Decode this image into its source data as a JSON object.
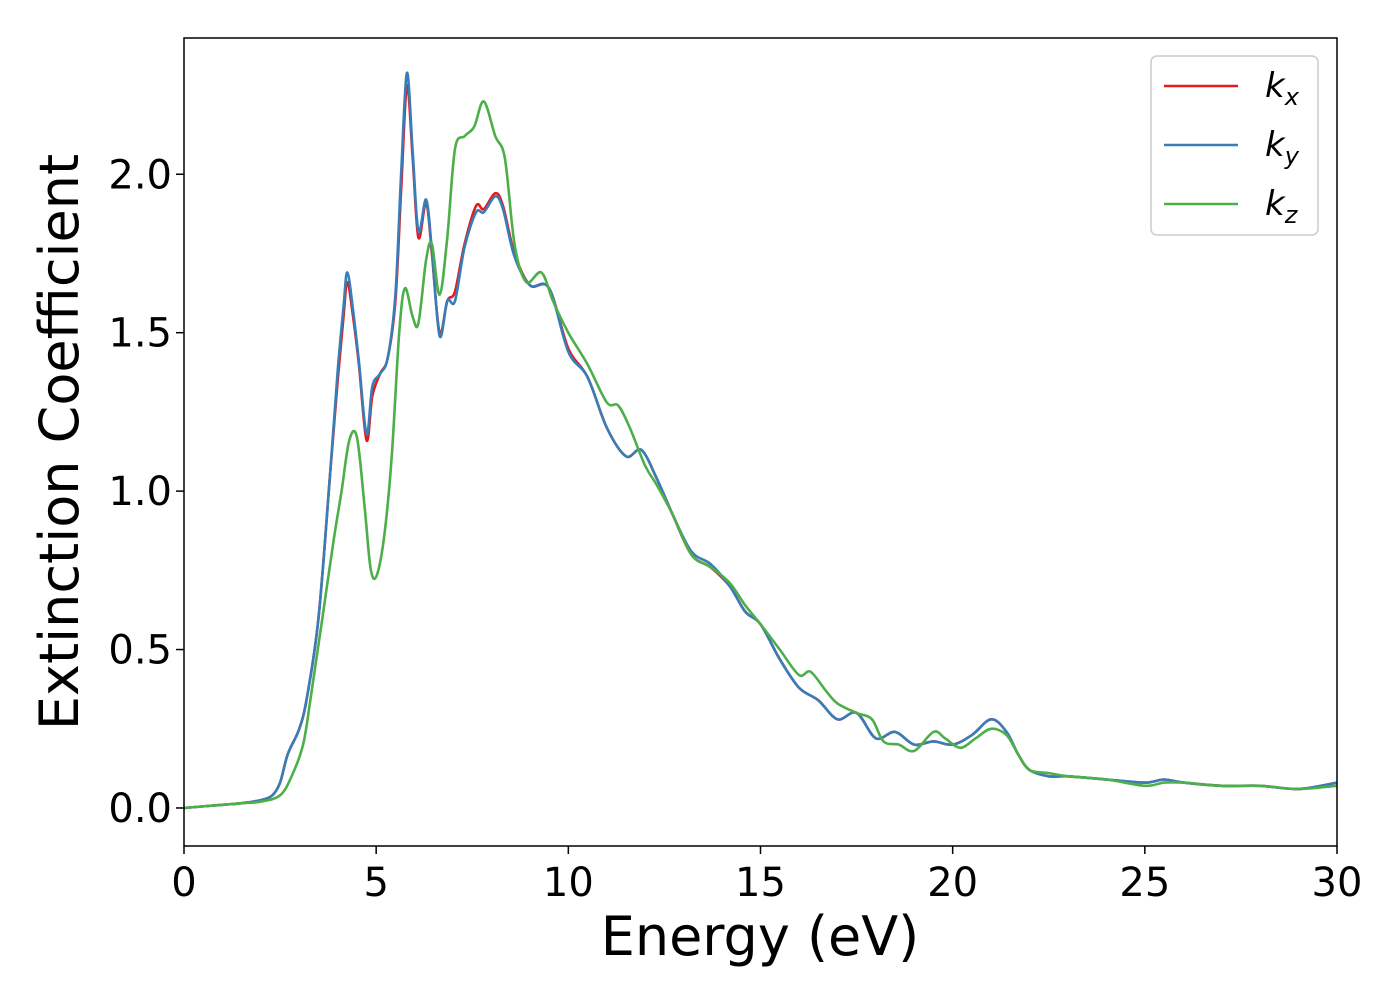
{
  "chart_data": {
    "type": "line",
    "xlabel": "Energy (eV)",
    "ylabel": "Extinction Coefficient",
    "xlim": [
      0,
      30
    ],
    "ylim": [
      -0.12,
      2.43
    ],
    "x_ticks": [
      0,
      5,
      10,
      15,
      20,
      25,
      30
    ],
    "x_tick_labels": [
      "0",
      "5",
      "10",
      "15",
      "20",
      "25",
      "30"
    ],
    "y_ticks": [
      0.0,
      0.5,
      1.0,
      1.5,
      2.0
    ],
    "y_tick_labels": [
      "0.0",
      "0.5",
      "1.0",
      "1.5",
      "2.0"
    ],
    "grid": false,
    "legend_position": "top-right",
    "series": [
      {
        "name": "k",
        "subscript": "x",
        "color": "#e41a1c",
        "points": [
          [
            0,
            0.0
          ],
          [
            1,
            0.01
          ],
          [
            1.5,
            0.015
          ],
          [
            2,
            0.025
          ],
          [
            2.3,
            0.04
          ],
          [
            2.5,
            0.08
          ],
          [
            2.7,
            0.17
          ],
          [
            3.0,
            0.25
          ],
          [
            3.2,
            0.35
          ],
          [
            3.5,
            0.6
          ],
          [
            3.8,
            1.05
          ],
          [
            4.0,
            1.35
          ],
          [
            4.15,
            1.55
          ],
          [
            4.25,
            1.66
          ],
          [
            4.4,
            1.55
          ],
          [
            4.55,
            1.4
          ],
          [
            4.75,
            1.16
          ],
          [
            4.9,
            1.3
          ],
          [
            5.1,
            1.37
          ],
          [
            5.3,
            1.42
          ],
          [
            5.5,
            1.6
          ],
          [
            5.65,
            1.95
          ],
          [
            5.8,
            2.28
          ],
          [
            5.95,
            2.05
          ],
          [
            6.1,
            1.8
          ],
          [
            6.3,
            1.91
          ],
          [
            6.45,
            1.75
          ],
          [
            6.65,
            1.5
          ],
          [
            6.85,
            1.6
          ],
          [
            7.05,
            1.63
          ],
          [
            7.3,
            1.78
          ],
          [
            7.6,
            1.9
          ],
          [
            7.8,
            1.89
          ],
          [
            8.1,
            1.94
          ],
          [
            8.3,
            1.9
          ],
          [
            8.6,
            1.75
          ],
          [
            9.0,
            1.65
          ],
          [
            9.5,
            1.64
          ],
          [
            10.0,
            1.45
          ],
          [
            10.5,
            1.36
          ],
          [
            11.0,
            1.2
          ],
          [
            11.5,
            1.11
          ],
          [
            11.9,
            1.13
          ],
          [
            12.3,
            1.04
          ],
          [
            12.7,
            0.93
          ],
          [
            13.2,
            0.8
          ],
          [
            13.7,
            0.76
          ],
          [
            14.2,
            0.7
          ],
          [
            14.6,
            0.62
          ],
          [
            15.0,
            0.58
          ],
          [
            15.5,
            0.47
          ],
          [
            16.0,
            0.38
          ],
          [
            16.5,
            0.34
          ],
          [
            17.0,
            0.28
          ],
          [
            17.5,
            0.3
          ],
          [
            18.0,
            0.22
          ],
          [
            18.5,
            0.24
          ],
          [
            19.0,
            0.2
          ],
          [
            19.5,
            0.21
          ],
          [
            20.0,
            0.2
          ],
          [
            20.5,
            0.23
          ],
          [
            21.0,
            0.28
          ],
          [
            21.4,
            0.24
          ],
          [
            21.7,
            0.17
          ],
          [
            22.0,
            0.12
          ],
          [
            22.5,
            0.1
          ],
          [
            23.0,
            0.1
          ],
          [
            24.0,
            0.09
          ],
          [
            25.0,
            0.08
          ],
          [
            25.5,
            0.09
          ],
          [
            26.0,
            0.08
          ],
          [
            27.0,
            0.07
          ],
          [
            28.0,
            0.07
          ],
          [
            29.0,
            0.06
          ],
          [
            30.0,
            0.08
          ]
        ]
      },
      {
        "name": "k",
        "subscript": "y",
        "color": "#377eb8",
        "points": [
          [
            0,
            0.0
          ],
          [
            1,
            0.01
          ],
          [
            1.5,
            0.015
          ],
          [
            2,
            0.025
          ],
          [
            2.3,
            0.04
          ],
          [
            2.5,
            0.08
          ],
          [
            2.7,
            0.17
          ],
          [
            3.0,
            0.25
          ],
          [
            3.2,
            0.35
          ],
          [
            3.5,
            0.6
          ],
          [
            3.8,
            1.05
          ],
          [
            4.0,
            1.38
          ],
          [
            4.15,
            1.58
          ],
          [
            4.25,
            1.69
          ],
          [
            4.4,
            1.57
          ],
          [
            4.55,
            1.41
          ],
          [
            4.75,
            1.18
          ],
          [
            4.9,
            1.33
          ],
          [
            5.1,
            1.37
          ],
          [
            5.3,
            1.42
          ],
          [
            5.5,
            1.62
          ],
          [
            5.65,
            2.0
          ],
          [
            5.8,
            2.32
          ],
          [
            5.95,
            2.07
          ],
          [
            6.1,
            1.82
          ],
          [
            6.3,
            1.92
          ],
          [
            6.45,
            1.76
          ],
          [
            6.65,
            1.49
          ],
          [
            6.85,
            1.6
          ],
          [
            7.05,
            1.6
          ],
          [
            7.3,
            1.77
          ],
          [
            7.6,
            1.88
          ],
          [
            7.8,
            1.88
          ],
          [
            8.1,
            1.93
          ],
          [
            8.3,
            1.89
          ],
          [
            8.6,
            1.74
          ],
          [
            9.0,
            1.65
          ],
          [
            9.5,
            1.64
          ],
          [
            10.0,
            1.44
          ],
          [
            10.5,
            1.36
          ],
          [
            11.0,
            1.2
          ],
          [
            11.5,
            1.11
          ],
          [
            11.9,
            1.13
          ],
          [
            12.3,
            1.04
          ],
          [
            12.7,
            0.93
          ],
          [
            13.2,
            0.81
          ],
          [
            13.7,
            0.77
          ],
          [
            14.2,
            0.7
          ],
          [
            14.6,
            0.62
          ],
          [
            15.0,
            0.58
          ],
          [
            15.5,
            0.47
          ],
          [
            16.0,
            0.38
          ],
          [
            16.5,
            0.34
          ],
          [
            17.0,
            0.28
          ],
          [
            17.5,
            0.3
          ],
          [
            18.0,
            0.22
          ],
          [
            18.5,
            0.24
          ],
          [
            19.0,
            0.2
          ],
          [
            19.5,
            0.21
          ],
          [
            20.0,
            0.2
          ],
          [
            20.5,
            0.23
          ],
          [
            21.0,
            0.28
          ],
          [
            21.4,
            0.24
          ],
          [
            21.7,
            0.17
          ],
          [
            22.0,
            0.12
          ],
          [
            22.5,
            0.1
          ],
          [
            23.0,
            0.1
          ],
          [
            24.0,
            0.09
          ],
          [
            25.0,
            0.08
          ],
          [
            25.5,
            0.09
          ],
          [
            26.0,
            0.08
          ],
          [
            27.0,
            0.07
          ],
          [
            28.0,
            0.07
          ],
          [
            29.0,
            0.06
          ],
          [
            30.0,
            0.08
          ]
        ]
      },
      {
        "name": "k",
        "subscript": "z",
        "color": "#4daf4a",
        "points": [
          [
            0,
            0.0
          ],
          [
            1,
            0.01
          ],
          [
            1.5,
            0.015
          ],
          [
            2,
            0.02
          ],
          [
            2.5,
            0.04
          ],
          [
            2.8,
            0.1
          ],
          [
            3.1,
            0.2
          ],
          [
            3.3,
            0.35
          ],
          [
            3.6,
            0.6
          ],
          [
            3.9,
            0.85
          ],
          [
            4.1,
            1.0
          ],
          [
            4.3,
            1.16
          ],
          [
            4.5,
            1.17
          ],
          [
            4.7,
            0.95
          ],
          [
            4.85,
            0.76
          ],
          [
            5.0,
            0.73
          ],
          [
            5.2,
            0.85
          ],
          [
            5.4,
            1.1
          ],
          [
            5.6,
            1.5
          ],
          [
            5.75,
            1.64
          ],
          [
            5.95,
            1.55
          ],
          [
            6.1,
            1.53
          ],
          [
            6.3,
            1.73
          ],
          [
            6.45,
            1.78
          ],
          [
            6.65,
            1.62
          ],
          [
            6.85,
            1.8
          ],
          [
            7.05,
            2.08
          ],
          [
            7.3,
            2.12
          ],
          [
            7.55,
            2.15
          ],
          [
            7.8,
            2.23
          ],
          [
            8.1,
            2.12
          ],
          [
            8.35,
            2.05
          ],
          [
            8.6,
            1.78
          ],
          [
            8.9,
            1.66
          ],
          [
            9.3,
            1.69
          ],
          [
            9.6,
            1.6
          ],
          [
            10.0,
            1.5
          ],
          [
            10.5,
            1.4
          ],
          [
            11.0,
            1.28
          ],
          [
            11.3,
            1.27
          ],
          [
            11.6,
            1.2
          ],
          [
            12.0,
            1.08
          ],
          [
            12.3,
            1.02
          ],
          [
            12.7,
            0.93
          ],
          [
            13.2,
            0.8
          ],
          [
            13.7,
            0.76
          ],
          [
            14.2,
            0.71
          ],
          [
            14.6,
            0.64
          ],
          [
            15.0,
            0.58
          ],
          [
            15.5,
            0.5
          ],
          [
            16.0,
            0.42
          ],
          [
            16.3,
            0.43
          ],
          [
            16.7,
            0.37
          ],
          [
            17.0,
            0.33
          ],
          [
            17.5,
            0.3
          ],
          [
            17.9,
            0.28
          ],
          [
            18.2,
            0.21
          ],
          [
            18.6,
            0.2
          ],
          [
            19.0,
            0.18
          ],
          [
            19.5,
            0.24
          ],
          [
            19.8,
            0.22
          ],
          [
            20.2,
            0.19
          ],
          [
            20.6,
            0.22
          ],
          [
            21.0,
            0.25
          ],
          [
            21.4,
            0.23
          ],
          [
            21.7,
            0.17
          ],
          [
            22.0,
            0.12
          ],
          [
            22.5,
            0.11
          ],
          [
            23.0,
            0.1
          ],
          [
            24.0,
            0.09
          ],
          [
            25.0,
            0.07
          ],
          [
            25.5,
            0.08
          ],
          [
            26.0,
            0.08
          ],
          [
            27.0,
            0.07
          ],
          [
            28.0,
            0.07
          ],
          [
            29.0,
            0.06
          ],
          [
            30.0,
            0.07
          ]
        ]
      }
    ]
  }
}
